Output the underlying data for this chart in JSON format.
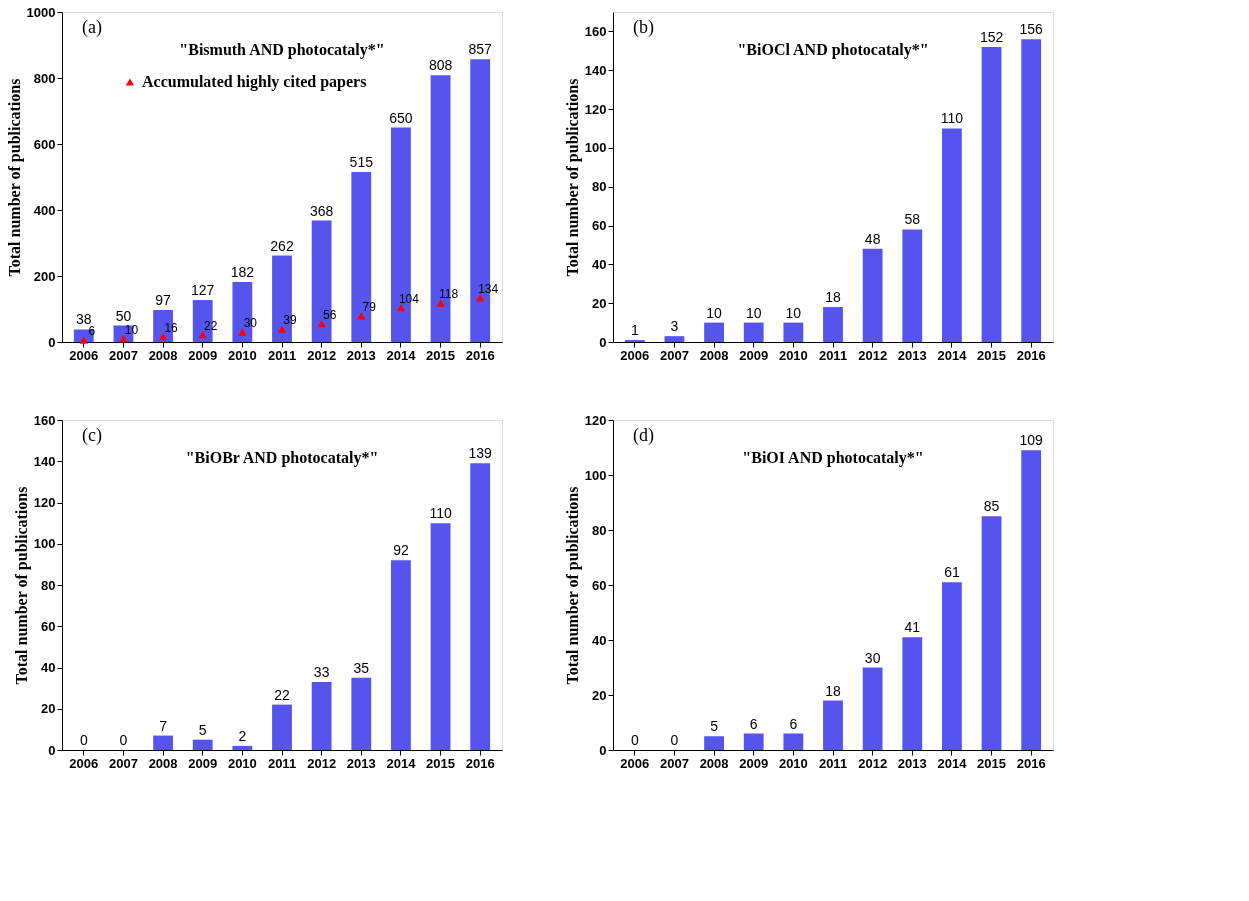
{
  "chart_data": [
    {
      "type": "bar",
      "ylabel": "Total number of publications",
      "annotations": [
        "(a)",
        "\"Bismuth AND photocataly*\""
      ],
      "categories": [
        "2006",
        "2007",
        "2008",
        "2009",
        "2010",
        "2011",
        "2012",
        "2013",
        "2014",
        "2015",
        "2016"
      ],
      "series": [
        {
          "color": "#5555ee",
          "values": [
            38,
            50,
            97,
            127,
            182,
            262,
            368,
            515,
            650,
            808,
            857
          ]
        },
        {
          "type": "scatter",
          "name": "Accumulated highly cited papers",
          "color": "#ff0000",
          "marker": "triangle",
          "values": [
            6,
            10,
            16,
            22,
            30,
            39,
            56,
            79,
            104,
            118,
            134
          ]
        }
      ],
      "ylim": [
        0,
        1000
      ],
      "yticks": [
        0,
        200,
        400,
        600,
        800,
        1000
      ],
      "data_labels": true,
      "legend": "top left",
      "grid": false
    },
    {
      "type": "bar",
      "ylabel": "Total number of publications",
      "annotations": [
        "(b)",
        "\"BiOCl AND photocataly*\""
      ],
      "categories": [
        "2006",
        "2007",
        "2008",
        "2009",
        "2010",
        "2011",
        "2012",
        "2013",
        "2014",
        "2015",
        "2016"
      ],
      "series": [
        {
          "color": "#5555ee",
          "values": [
            1,
            3,
            10,
            10,
            10,
            18,
            48,
            58,
            110,
            152,
            156
          ]
        }
      ],
      "ylim": [
        0,
        170
      ],
      "yticks": [
        0,
        20,
        40,
        60,
        80,
        100,
        120,
        140,
        160
      ],
      "data_labels": true,
      "grid": false
    },
    {
      "type": "bar",
      "ylabel": "Total number of publications",
      "annotations": [
        "(c)",
        "\"BiOBr AND photocataly*\""
      ],
      "categories": [
        "2006",
        "2007",
        "2008",
        "2009",
        "2010",
        "2011",
        "2012",
        "2013",
        "2014",
        "2015",
        "2016"
      ],
      "series": [
        {
          "color": "#5555ee",
          "values": [
            0,
            0,
            7,
            5,
            2,
            22,
            33,
            35,
            92,
            110,
            139
          ]
        }
      ],
      "ylim": [
        0,
        160
      ],
      "yticks": [
        0,
        20,
        40,
        60,
        80,
        100,
        120,
        140,
        160
      ],
      "data_labels": true,
      "grid": false
    },
    {
      "type": "bar",
      "ylabel": "Total number of publications",
      "annotations": [
        "(d)",
        "\"BiOI AND photocataly*\""
      ],
      "categories": [
        "2006",
        "2007",
        "2008",
        "2009",
        "2010",
        "2011",
        "2012",
        "2013",
        "2014",
        "2015",
        "2016"
      ],
      "series": [
        {
          "color": "#5555ee",
          "values": [
            0,
            0,
            5,
            6,
            6,
            18,
            30,
            41,
            61,
            85,
            109
          ]
        }
      ],
      "ylim": [
        0,
        120
      ],
      "yticks": [
        0,
        20,
        40,
        60,
        80,
        100,
        120
      ],
      "data_labels": true,
      "grid": false
    }
  ]
}
